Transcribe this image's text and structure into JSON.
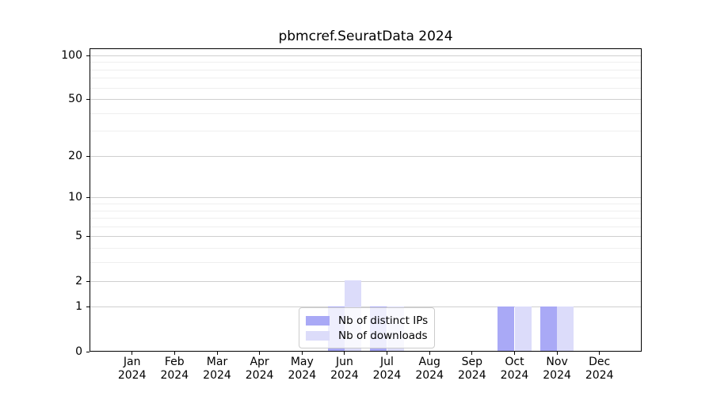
{
  "chart_data": {
    "type": "bar",
    "title": "pbmcref.SeuratData 2024",
    "categories": [
      "Jan",
      "Feb",
      "Mar",
      "Apr",
      "May",
      "Jun",
      "Jul",
      "Aug",
      "Sep",
      "Oct",
      "Nov",
      "Dec"
    ],
    "category_sublabel": "2024",
    "series": [
      {
        "name": "Nb of distinct IPs",
        "color": "#a9a9f6",
        "values": [
          0,
          0,
          0,
          0,
          0,
          1,
          1,
          0,
          0,
          1,
          1,
          0
        ]
      },
      {
        "name": "Nb of downloads",
        "color": "#dcdcfa",
        "values": [
          0,
          0,
          0,
          0,
          0,
          2,
          1,
          0,
          0,
          1,
          1,
          0
        ]
      }
    ],
    "y_axis": {
      "scale": "log1p",
      "tick_values": [
        0,
        1,
        2,
        5,
        10,
        20,
        50,
        100
      ],
      "minor_tick_values": [
        3,
        4,
        6,
        7,
        8,
        9,
        30,
        40,
        60,
        70,
        80,
        90
      ],
      "ylim": [
        0,
        110
      ]
    },
    "x_axis": {
      "tick_label_format": "month-over-year"
    },
    "grid": true,
    "legend_position": "lower center",
    "colors": {
      "major_grid": "#cfcfcf",
      "minor_grid": "#efefef",
      "spine": "#000000",
      "background": "#ffffff"
    }
  }
}
